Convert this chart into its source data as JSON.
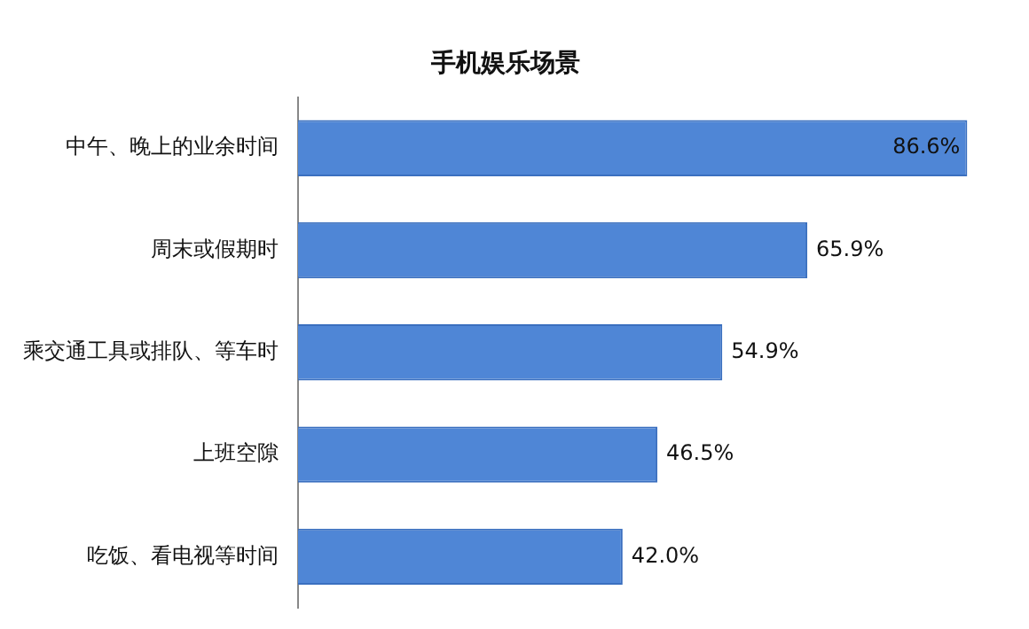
{
  "chart_data": {
    "type": "bar",
    "orientation": "horizontal",
    "title": "手机娱乐场景",
    "categories": [
      "中午、晚上的业余时间",
      "周末或假期时",
      "乘交通工具或排队、等车时",
      "上班空隙",
      "吃饭、看电视等时间"
    ],
    "values": [
      86.6,
      65.9,
      54.9,
      46.5,
      42.0
    ],
    "value_labels": [
      "86.6%",
      "65.9%",
      "54.9%",
      "46.5%",
      "42.0%"
    ],
    "color": "#4f86d6",
    "legend": false
  }
}
